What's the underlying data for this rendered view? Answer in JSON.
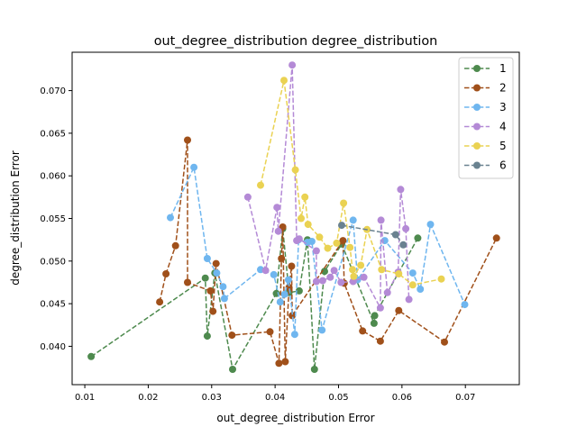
{
  "chart_data": {
    "type": "line",
    "title": "out_degree_distribution degree_distribution",
    "xlabel": "out_degree_distribution Error",
    "ylabel": "degree_distribution Error",
    "xlim": [
      0.008,
      0.0785
    ],
    "ylim": [
      0.0355,
      0.0745
    ],
    "xticks": [
      "0.01",
      "0.02",
      "0.03",
      "0.04",
      "0.05",
      "0.06",
      "0.07"
    ],
    "yticks": [
      "0.040",
      "0.045",
      "0.050",
      "0.055",
      "0.060",
      "0.065",
      "0.070"
    ],
    "xtick_values": [
      0.01,
      0.02,
      0.03,
      0.04,
      0.05,
      0.06,
      0.07
    ],
    "ytick_values": [
      0.04,
      0.045,
      0.05,
      0.055,
      0.06,
      0.065,
      0.07
    ],
    "grid": false,
    "legend": "top-right",
    "series": [
      {
        "name": "1",
        "color": "#4e8a4e",
        "points": [
          [
            0.011,
            0.0388
          ],
          [
            0.029,
            0.048
          ],
          [
            0.0293,
            0.0412
          ],
          [
            0.0305,
            0.0486
          ],
          [
            0.0333,
            0.0373
          ],
          [
            0.0402,
            0.0462
          ],
          [
            0.0412,
            0.0538
          ],
          [
            0.0422,
            0.0463
          ],
          [
            0.0438,
            0.0465
          ],
          [
            0.0451,
            0.0525
          ],
          [
            0.0462,
            0.0373
          ],
          [
            0.0478,
            0.0488
          ],
          [
            0.0505,
            0.052
          ],
          [
            0.0556,
            0.0427
          ],
          [
            0.0557,
            0.0436
          ],
          [
            0.0625,
            0.0527
          ]
        ]
      },
      {
        "name": "2",
        "color": "#a0501a",
        "points": [
          [
            0.0218,
            0.0452
          ],
          [
            0.0228,
            0.0485
          ],
          [
            0.0243,
            0.0518
          ],
          [
            0.0262,
            0.0642
          ],
          [
            0.0262,
            0.0475
          ],
          [
            0.0298,
            0.0465
          ],
          [
            0.0302,
            0.0441
          ],
          [
            0.0307,
            0.0497
          ],
          [
            0.0332,
            0.0413
          ],
          [
            0.0392,
            0.0417
          ],
          [
            0.0406,
            0.038
          ],
          [
            0.041,
            0.0503
          ],
          [
            0.0412,
            0.054
          ],
          [
            0.0416,
            0.0382
          ],
          [
            0.0422,
            0.0469
          ],
          [
            0.0426,
            0.0494
          ],
          [
            0.0427,
            0.0436
          ],
          [
            0.0507,
            0.0524
          ],
          [
            0.0509,
            0.0474
          ],
          [
            0.0538,
            0.0418
          ],
          [
            0.0566,
            0.0406
          ],
          [
            0.0595,
            0.0442
          ],
          [
            0.0667,
            0.0405
          ],
          [
            0.0749,
            0.0527
          ]
        ]
      },
      {
        "name": "3",
        "color": "#6fb6ef",
        "points": [
          [
            0.0235,
            0.0551
          ],
          [
            0.0272,
            0.061
          ],
          [
            0.0293,
            0.0503
          ],
          [
            0.0308,
            0.0486
          ],
          [
            0.0318,
            0.047
          ],
          [
            0.032,
            0.0456
          ],
          [
            0.0377,
            0.049
          ],
          [
            0.0398,
            0.0484
          ],
          [
            0.0408,
            0.0452
          ],
          [
            0.0415,
            0.0461
          ],
          [
            0.0421,
            0.0478
          ],
          [
            0.0431,
            0.0414
          ],
          [
            0.0437,
            0.0525
          ],
          [
            0.0451,
            0.0522
          ],
          [
            0.0458,
            0.0523
          ],
          [
            0.0474,
            0.0419
          ],
          [
            0.0523,
            0.0548
          ],
          [
            0.053,
            0.0478
          ],
          [
            0.0573,
            0.0524
          ],
          [
            0.0617,
            0.0486
          ],
          [
            0.0629,
            0.0467
          ],
          [
            0.0645,
            0.0543
          ],
          [
            0.0699,
            0.0449
          ]
        ]
      },
      {
        "name": "4",
        "color": "#b48ad6",
        "points": [
          [
            0.0357,
            0.0575
          ],
          [
            0.0385,
            0.0489
          ],
          [
            0.0403,
            0.0563
          ],
          [
            0.0405,
            0.0535
          ],
          [
            0.0427,
            0.073
          ],
          [
            0.0434,
            0.0524
          ],
          [
            0.0438,
            0.0526
          ],
          [
            0.0465,
            0.0512
          ],
          [
            0.0465,
            0.0476
          ],
          [
            0.0475,
            0.0477
          ],
          [
            0.0487,
            0.0481
          ],
          [
            0.0493,
            0.0489
          ],
          [
            0.0504,
            0.0475
          ],
          [
            0.0523,
            0.0476
          ],
          [
            0.054,
            0.0481
          ],
          [
            0.0566,
            0.0445
          ],
          [
            0.0567,
            0.0548
          ],
          [
            0.0577,
            0.0463
          ],
          [
            0.0594,
            0.0487
          ],
          [
            0.0598,
            0.0584
          ],
          [
            0.0606,
            0.0538
          ],
          [
            0.0611,
            0.0455
          ]
        ]
      },
      {
        "name": "5",
        "color": "#ead252",
        "points": [
          [
            0.0377,
            0.0589
          ],
          [
            0.0414,
            0.0712
          ],
          [
            0.0432,
            0.0607
          ],
          [
            0.0441,
            0.055
          ],
          [
            0.0447,
            0.0575
          ],
          [
            0.0452,
            0.0543
          ],
          [
            0.047,
            0.0528
          ],
          [
            0.0483,
            0.0515
          ],
          [
            0.0497,
            0.0521
          ],
          [
            0.0508,
            0.0568
          ],
          [
            0.0518,
            0.0516
          ],
          [
            0.0522,
            0.049
          ],
          [
            0.0524,
            0.0482
          ],
          [
            0.0535,
            0.0495
          ],
          [
            0.0545,
            0.0537
          ],
          [
            0.0568,
            0.049
          ],
          [
            0.0595,
            0.0485
          ],
          [
            0.0617,
            0.0472
          ],
          [
            0.0662,
            0.0479
          ]
        ]
      },
      {
        "name": "6",
        "color": "#6a8290",
        "points": [
          [
            0.0505,
            0.0542
          ],
          [
            0.059,
            0.0531
          ],
          [
            0.0602,
            0.0519
          ]
        ]
      }
    ]
  }
}
